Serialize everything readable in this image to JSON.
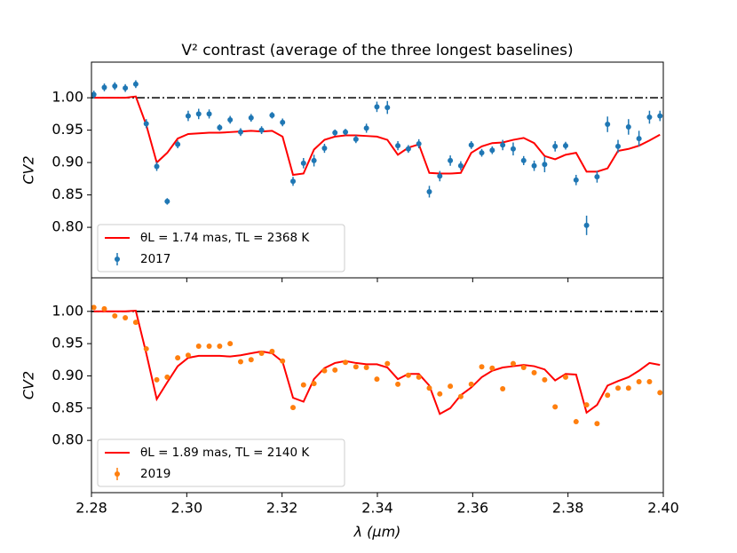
{
  "chart_data": [
    {
      "type": "scatter",
      "title": "V² contrast (average of the three longest baselines)",
      "ylabel": "CV2",
      "x": [
        2.2805,
        2.2827,
        2.2849,
        2.2871,
        2.2893,
        2.2915,
        2.2937,
        2.2959,
        2.2981,
        2.3003,
        2.3025,
        2.3047,
        2.3069,
        2.3091,
        2.3113,
        2.3135,
        2.3157,
        2.3179,
        2.3201,
        2.3223,
        2.3245,
        2.3267,
        2.3289,
        2.3311,
        2.3333,
        2.3355,
        2.3377,
        2.3399,
        2.3421,
        2.3443,
        2.3465,
        2.3487,
        2.3509,
        2.3531,
        2.3553,
        2.3575,
        2.3597,
        2.3619,
        2.3641,
        2.3663,
        2.3685,
        2.3707,
        2.3729,
        2.3751,
        2.3773,
        2.3795,
        2.3817,
        2.3839,
        2.3861,
        2.3883,
        2.3905,
        2.3927,
        2.3949,
        2.3971,
        2.3993
      ],
      "xlim": [
        2.28,
        2.4
      ],
      "ylim": [
        0.722,
        1.055
      ],
      "yticks": [
        {
          "value": 0.8,
          "label": "0.80"
        },
        {
          "value": 0.85,
          "label": "0.85"
        },
        {
          "value": 0.9,
          "label": "0.90"
        },
        {
          "value": 0.95,
          "label": "0.95"
        },
        {
          "value": 1.0,
          "label": "1.00"
        }
      ],
      "hline": 1.0,
      "legend": "lower left",
      "series": [
        {
          "name": "θL = 1.74 mas, TL = 2368 K",
          "kind": "line",
          "color": "#ff0000",
          "values": [
            1.0,
            1.0,
            1.0,
            1.0,
            1.002,
            0.958,
            0.9,
            0.915,
            0.937,
            0.944,
            0.945,
            0.946,
            0.946,
            0.947,
            0.948,
            0.949,
            0.948,
            0.949,
            0.94,
            0.881,
            0.883,
            0.92,
            0.935,
            0.94,
            0.942,
            0.942,
            0.941,
            0.94,
            0.935,
            0.912,
            0.923,
            0.928,
            0.884,
            0.883,
            0.883,
            0.884,
            0.915,
            0.925,
            0.93,
            0.931,
            0.935,
            0.938,
            0.93,
            0.91,
            0.905,
            0.912,
            0.915,
            0.886,
            0.886,
            0.891,
            0.918,
            0.921,
            0.926,
            0.934,
            0.943
          ]
        },
        {
          "name": "2017",
          "kind": "errorbar",
          "color": "#1f77b4",
          "values": [
            1.005,
            1.016,
            1.018,
            1.015,
            1.021,
            0.96,
            0.894,
            0.84,
            0.928,
            0.972,
            0.975,
            0.975,
            0.954,
            0.966,
            0.947,
            0.969,
            0.95,
            0.973,
            0.962,
            0.871,
            0.899,
            0.903,
            0.922,
            0.946,
            0.947,
            0.936,
            0.953,
            0.986,
            0.985,
            0.926,
            0.921,
            0.929,
            0.855,
            0.879,
            0.903,
            0.895,
            0.927,
            0.915,
            0.919,
            0.927,
            0.921,
            0.903,
            0.895,
            0.897,
            0.925,
            0.926,
            0.873,
            0.803,
            0.878,
            0.959,
            0.925,
            0.955,
            0.937,
            0.97,
            0.972
          ],
          "errors": [
            0.006,
            0.006,
            0.006,
            0.006,
            0.006,
            0.007,
            0.007,
            0.005,
            0.006,
            0.008,
            0.008,
            0.007,
            0.005,
            0.006,
            0.006,
            0.006,
            0.006,
            0.005,
            0.006,
            0.007,
            0.008,
            0.009,
            0.007,
            0.005,
            0.005,
            0.006,
            0.007,
            0.008,
            0.01,
            0.007,
            0.006,
            0.007,
            0.009,
            0.008,
            0.008,
            0.007,
            0.006,
            0.006,
            0.006,
            0.008,
            0.01,
            0.007,
            0.008,
            0.012,
            0.008,
            0.006,
            0.008,
            0.015,
            0.009,
            0.012,
            0.01,
            0.012,
            0.012,
            0.01,
            0.008
          ]
        }
      ]
    },
    {
      "type": "scatter",
      "ylabel": "CV2",
      "xlabel": "λ (μm)",
      "x": [
        2.2805,
        2.2827,
        2.2849,
        2.2871,
        2.2893,
        2.2915,
        2.2937,
        2.2959,
        2.2981,
        2.3003,
        2.3025,
        2.3047,
        2.3069,
        2.3091,
        2.3113,
        2.3135,
        2.3157,
        2.3179,
        2.3201,
        2.3223,
        2.3245,
        2.3267,
        2.3289,
        2.3311,
        2.3333,
        2.3355,
        2.3377,
        2.3399,
        2.3421,
        2.3443,
        2.3465,
        2.3487,
        2.3509,
        2.3531,
        2.3553,
        2.3575,
        2.3597,
        2.3619,
        2.3641,
        2.3663,
        2.3685,
        2.3707,
        2.3729,
        2.3751,
        2.3773,
        2.3795,
        2.3817,
        2.3839,
        2.3861,
        2.3883,
        2.3905,
        2.3927,
        2.3949,
        2.3971,
        2.3993
      ],
      "xlim": [
        2.28,
        2.4
      ],
      "ylim": [
        0.719,
        1.052
      ],
      "xticks": [
        2.28,
        {
          "value": 2.3,
          "label": "2.30"
        },
        2.32,
        2.34,
        2.36,
        2.38,
        {
          "value": 2.4,
          "label": "2.40"
        }
      ],
      "yticks": [
        {
          "value": 0.8,
          "label": "0.80"
        },
        {
          "value": 0.85,
          "label": "0.85"
        },
        {
          "value": 0.9,
          "label": "0.90"
        },
        {
          "value": 0.95,
          "label": "0.95"
        },
        {
          "value": 1.0,
          "label": "1.00"
        }
      ],
      "hline": 1.0,
      "legend": "lower left",
      "series": [
        {
          "name": "θL = 1.89 mas, TL = 2140 K",
          "kind": "line",
          "color": "#ff0000",
          "values": [
            1.0,
            1.0,
            1.0,
            1.0,
            1.001,
            0.935,
            0.864,
            0.89,
            0.915,
            0.928,
            0.931,
            0.931,
            0.931,
            0.93,
            0.932,
            0.935,
            0.938,
            0.935,
            0.922,
            0.866,
            0.86,
            0.895,
            0.912,
            0.92,
            0.923,
            0.92,
            0.918,
            0.918,
            0.913,
            0.895,
            0.903,
            0.903,
            0.885,
            0.841,
            0.85,
            0.87,
            0.882,
            0.898,
            0.908,
            0.913,
            0.915,
            0.917,
            0.915,
            0.91,
            0.893,
            0.903,
            0.902,
            0.843,
            0.855,
            0.885,
            0.892,
            0.898,
            0.908,
            0.92,
            0.917
          ]
        },
        {
          "name": "2019",
          "kind": "errorbar",
          "color": "#ff7f0e",
          "values": [
            1.006,
            1.004,
            0.993,
            0.99,
            0.983,
            0.942,
            0.894,
            0.898,
            0.928,
            0.932,
            0.946,
            0.946,
            0.946,
            0.95,
            0.922,
            0.925,
            0.935,
            0.938,
            0.923,
            0.851,
            0.886,
            0.888,
            0.908,
            0.909,
            0.921,
            0.914,
            0.913,
            0.895,
            0.919,
            0.887,
            0.901,
            0.898,
            0.881,
            0.872,
            0.884,
            0.868,
            0.887,
            0.914,
            0.912,
            0.88,
            0.919,
            0.913,
            0.905,
            0.894,
            0.852,
            0.898,
            0.829,
            0.855,
            0.826,
            0.87,
            0.881,
            0.881,
            0.891,
            0.891,
            0.874
          ]
        },
        {
          "name": "",
          "kind": "errors-of-above"
        }
      ]
    }
  ]
}
